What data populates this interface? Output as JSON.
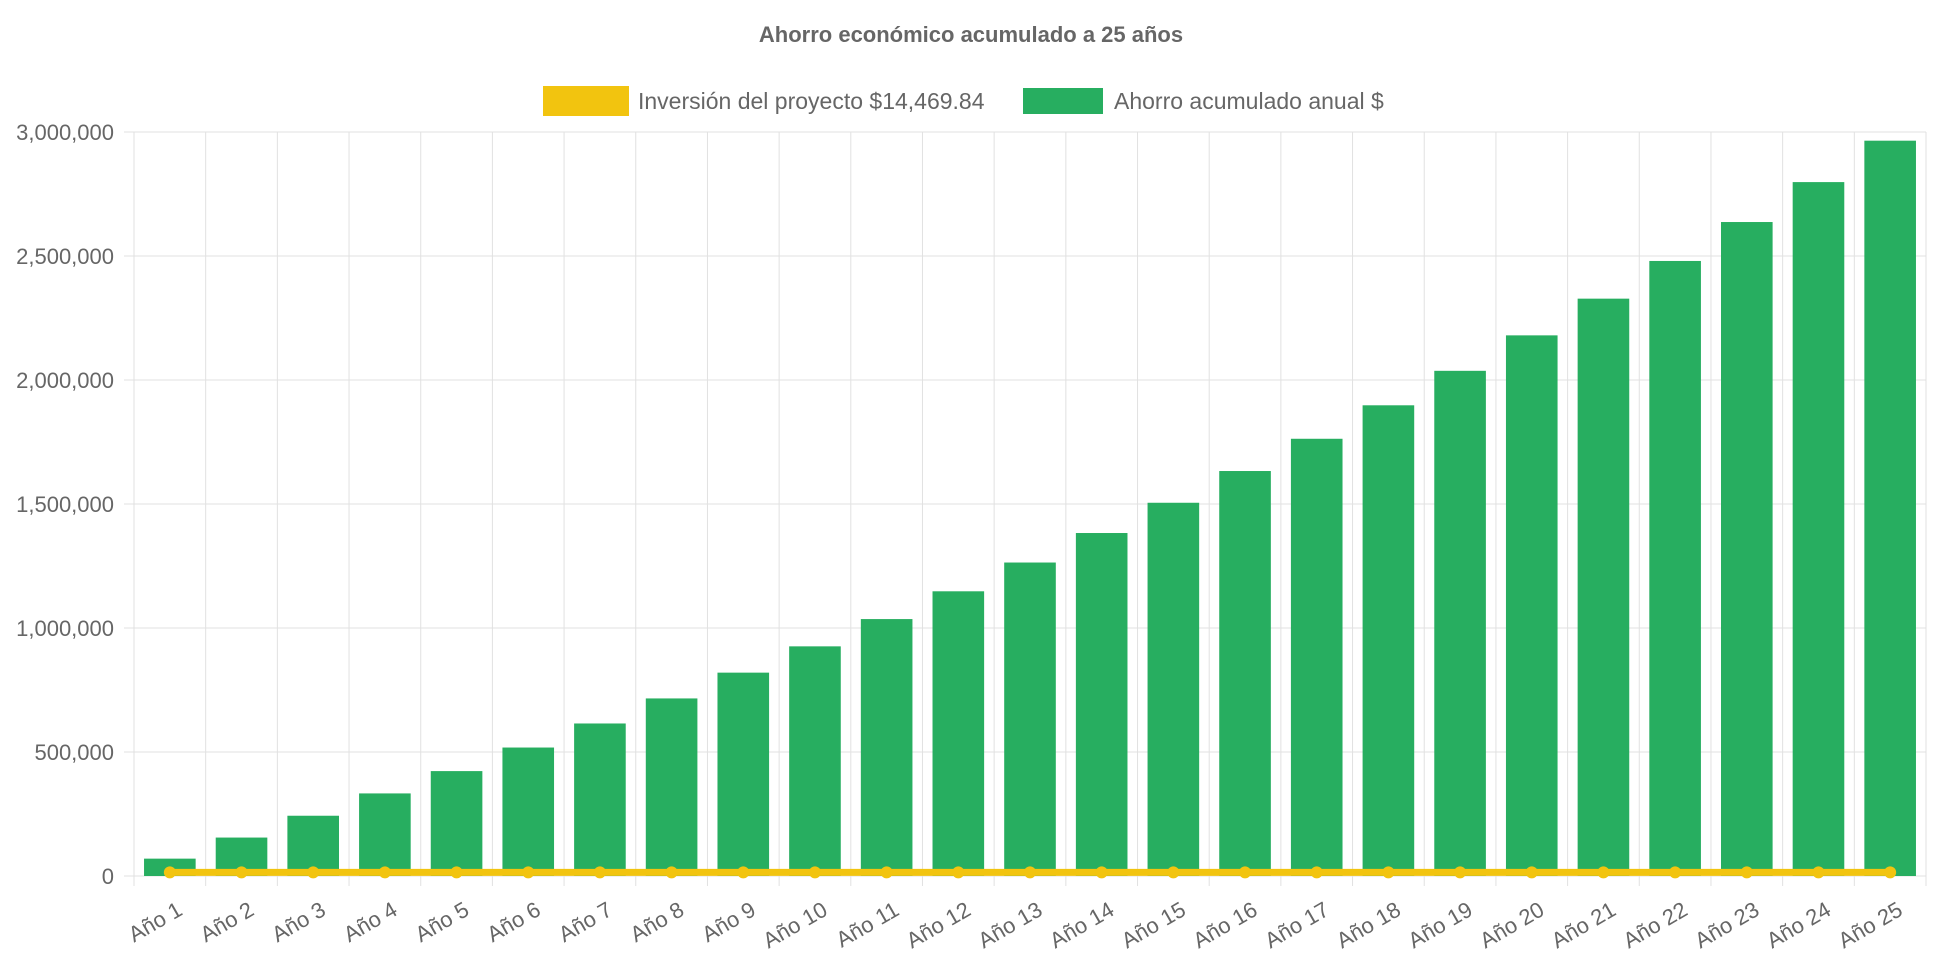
{
  "chart_data": {
    "type": "bar",
    "title": "Ahorro económico acumulado a 25 años",
    "legend_position": "top",
    "grid": true,
    "categories": [
      "Año 1",
      "Año 2",
      "Año 3",
      "Año 4",
      "Año 5",
      "Año 6",
      "Año 7",
      "Año 8",
      "Año 9",
      "Año 10",
      "Año 11",
      "Año 12",
      "Año 13",
      "Año 14",
      "Año 15",
      "Año 16",
      "Año 17",
      "Año 18",
      "Año 19",
      "Año 20",
      "Año 21",
      "Año 22",
      "Año 23",
      "Año 24",
      "Año 25"
    ],
    "y_ticks": [
      "0",
      "500,000",
      "1,000,000",
      "1,500,000",
      "2,000,000",
      "2,500,000",
      "3,000,000"
    ],
    "ylim": [
      0,
      3000000
    ],
    "series": [
      {
        "name": "Inversión del proyecto $14,469.84",
        "type": "line",
        "color": "#f2c40f",
        "values": [
          14469.84,
          14469.84,
          14469.84,
          14469.84,
          14469.84,
          14469.84,
          14469.84,
          14469.84,
          14469.84,
          14469.84,
          14469.84,
          14469.84,
          14469.84,
          14469.84,
          14469.84,
          14469.84,
          14469.84,
          14469.84,
          14469.84,
          14469.84,
          14469.84,
          14469.84,
          14469.84,
          14469.84,
          14469.84
        ]
      },
      {
        "name": "Ahorro acumulado anual $",
        "type": "bar",
        "color": "#27ae60",
        "values": [
          70000,
          155000,
          243000,
          333000,
          423000,
          518000,
          615000,
          716000,
          820000,
          926000,
          1036000,
          1148000,
          1264000,
          1383000,
          1505000,
          1633000,
          1763000,
          1898000,
          2037000,
          2180000,
          2328000,
          2480000,
          2637000,
          2798000,
          2965000
        ]
      }
    ]
  }
}
